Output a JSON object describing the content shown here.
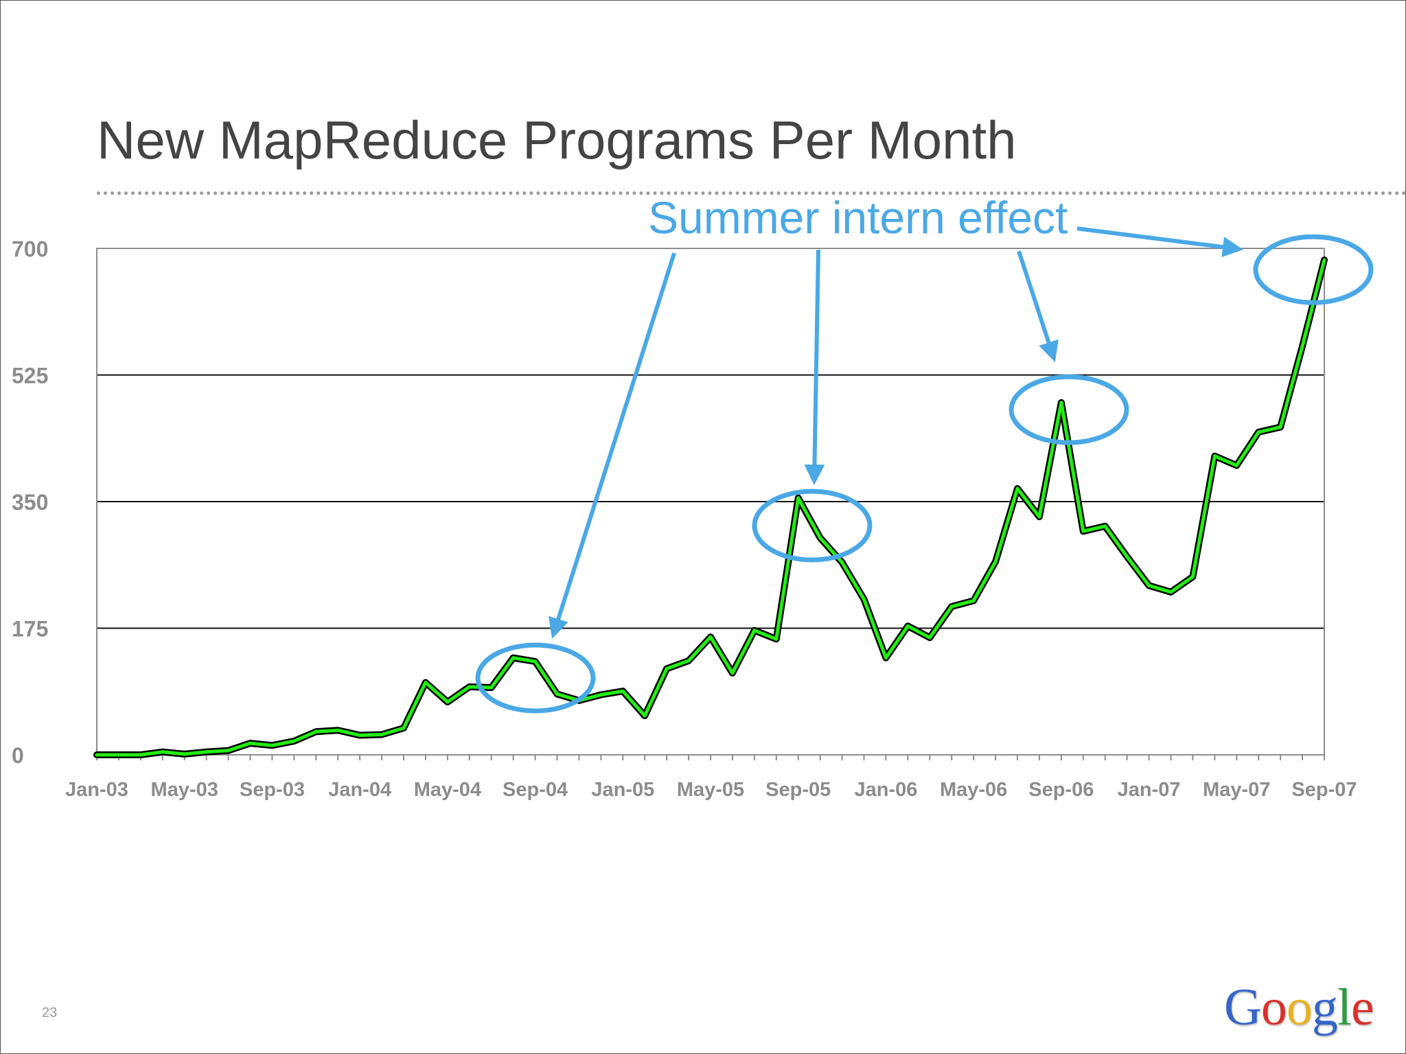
{
  "slide": {
    "title": "New MapReduce Programs Per Month",
    "page_number": "23",
    "logo": {
      "text": "Google",
      "letters": [
        {
          "ch": "G",
          "color": "#3466c8"
        },
        {
          "ch": "o",
          "color": "#d9302b"
        },
        {
          "ch": "o",
          "color": "#e8b321"
        },
        {
          "ch": "g",
          "color": "#3466c8"
        },
        {
          "ch": "l",
          "color": "#2f9a3f"
        },
        {
          "ch": "e",
          "color": "#d9302b"
        }
      ]
    }
  },
  "chart_data": {
    "type": "line",
    "title": "New MapReduce Programs Per Month",
    "xlabel": "",
    "ylabel": "",
    "ylim": [
      0,
      700
    ],
    "y_ticks": [
      "0",
      "175",
      "350",
      "525",
      "700"
    ],
    "x_tick_labels": [
      "Jan-03",
      "May-03",
      "Sep-03",
      "Jan-04",
      "May-04",
      "Sep-04",
      "Jan-05",
      "May-05",
      "Sep-05",
      "Jan-06",
      "May-06",
      "Sep-06",
      "Jan-07",
      "May-07",
      "Sep-07"
    ],
    "grid": "horizontal",
    "line_color": "#22ee11",
    "annotation_color": "#4aa8e6",
    "series": [
      {
        "name": "New MapReduce programs",
        "values": [
          0,
          0,
          0,
          4,
          1,
          4,
          6,
          16,
          13,
          19,
          32,
          34,
          27,
          28,
          37,
          100,
          73,
          94,
          93,
          134,
          129,
          84,
          75,
          83,
          88,
          54,
          119,
          130,
          163,
          113,
          172,
          160,
          355,
          300,
          266,
          215,
          134,
          178,
          162,
          205,
          213,
          267,
          368,
          329,
          487,
          309,
          316,
          274,
          234,
          225,
          246,
          413,
          400,
          446,
          453,
          565,
          684
        ]
      }
    ],
    "annotation": {
      "label": "Summer intern effect",
      "circled_points": [
        "Jul-04",
        "Sep-05",
        "Sep-06",
        "Sep-07"
      ]
    }
  }
}
